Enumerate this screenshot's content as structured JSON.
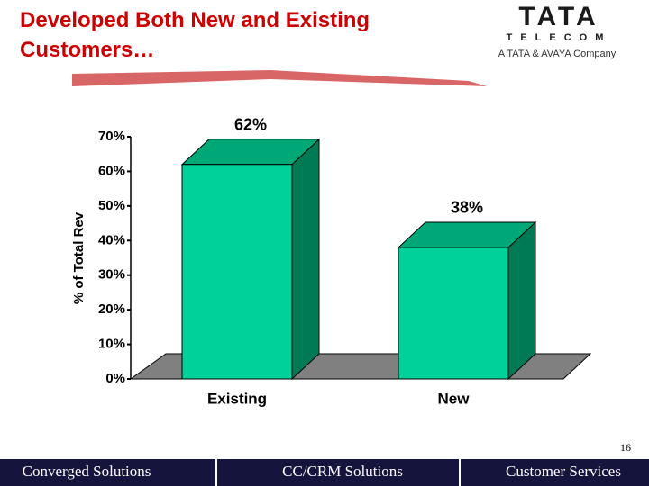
{
  "header": {
    "title": "Developed Both New and Existing Customers…",
    "logo_name": "TATA",
    "logo_sub": "TELECOM",
    "logo_tagline": "A TATA & AVAYA Company"
  },
  "chart_data": {
    "type": "bar3d",
    "ylabel": "% of Total Rev",
    "categories": [
      "Existing",
      "New"
    ],
    "values": [
      62,
      38
    ],
    "value_labels": [
      "62%",
      "38%"
    ],
    "color": "#00d09a",
    "side_color": "#007a55",
    "top_color": "#00a878",
    "ylim": [
      0,
      70
    ],
    "yticks": [
      {
        "value": 0,
        "label": "0%"
      },
      {
        "value": 10,
        "label": "10%"
      },
      {
        "value": 20,
        "label": "20%"
      },
      {
        "value": 30,
        "label": "30%"
      },
      {
        "value": 40,
        "label": "40%"
      },
      {
        "value": 50,
        "label": "50%"
      },
      {
        "value": 60,
        "label": "60%"
      },
      {
        "value": 70,
        "label": "70%"
      }
    ]
  },
  "footer": {
    "page": "16",
    "sections": [
      "Converged Solutions",
      "CC/CRM Solutions",
      "Customer Services"
    ]
  }
}
